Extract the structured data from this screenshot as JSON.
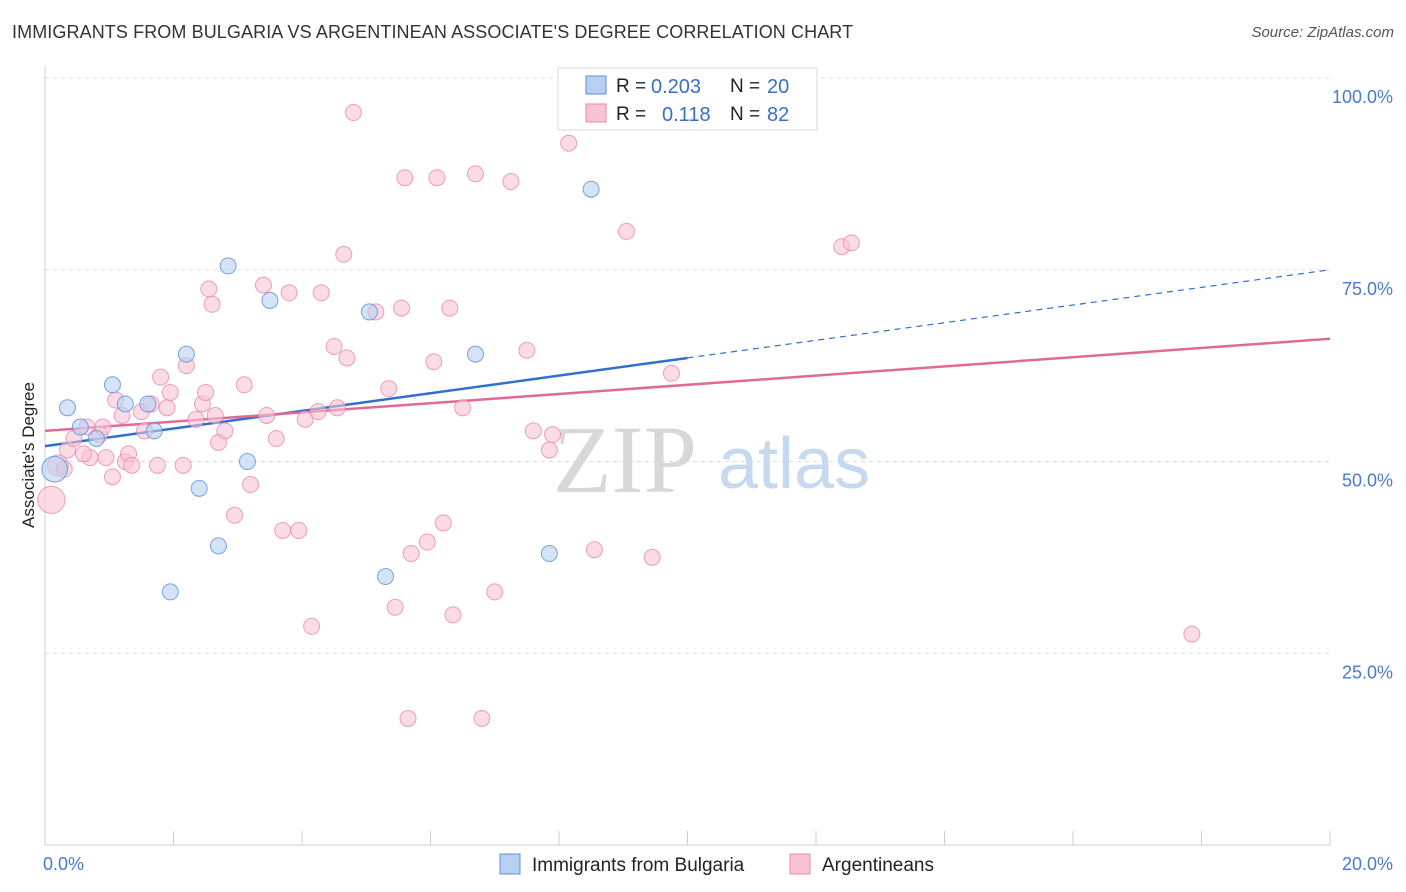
{
  "header": {
    "title": "IMMIGRANTS FROM BULGARIA VS ARGENTINEAN ASSOCIATE'S DEGREE CORRELATION CHART",
    "source": "Source: ZipAtlas.com"
  },
  "watermark": {
    "zip": "ZIP",
    "atlas": "atlas"
  },
  "legend": {
    "rows": [
      {
        "r_label": "R =",
        "r_value": "0.203",
        "n_label": "N =",
        "n_value": "20"
      },
      {
        "r_label": "R =",
        "r_value": "0.118",
        "n_label": "N =",
        "n_value": "82"
      }
    ]
  },
  "chart_data": {
    "type": "scatter",
    "title": "IMMIGRANTS FROM BULGARIA VS ARGENTINEAN ASSOCIATE'S DEGREE CORRELATION CHART",
    "xlabel": "",
    "ylabel": "Associate's Degree",
    "xlim": [
      0,
      20
    ],
    "ylim": [
      0,
      100
    ],
    "x_tick_labels": [
      "0.0%",
      "20.0%"
    ],
    "y_ticks": [
      25,
      50,
      75,
      100
    ],
    "y_tick_labels": [
      "25.0%",
      "50.0%",
      "75.0%",
      "100.0%"
    ],
    "grid": true,
    "legend_position": "top-center",
    "colors": {
      "bulgaria_fill": "#b7d0f2",
      "bulgaria_stroke": "#5b8fd6",
      "bulgaria_line": "#2e6fcf",
      "argentina_fill": "#f8c3d3",
      "argentina_stroke": "#e889a8",
      "argentina_line": "#e06a96"
    },
    "series": [
      {
        "name": "Immigrants from Bulgaria",
        "points": [
          [
            0.15,
            49.0,
            1.6
          ],
          [
            0.35,
            57.0,
            1
          ],
          [
            0.55,
            54.5,
            1
          ],
          [
            0.8,
            53.0,
            1
          ],
          [
            1.05,
            60.0,
            1
          ],
          [
            1.25,
            57.5,
            1
          ],
          [
            1.6,
            57.5,
            1
          ],
          [
            1.7,
            54.0,
            1
          ],
          [
            2.2,
            64.0,
            1
          ],
          [
            2.4,
            46.5,
            1
          ],
          [
            2.7,
            39.0,
            1
          ],
          [
            2.85,
            75.5,
            1
          ],
          [
            1.95,
            33.0,
            1
          ],
          [
            3.15,
            50.0,
            1
          ],
          [
            3.5,
            71.0,
            1
          ],
          [
            5.05,
            69.5,
            1
          ],
          [
            5.3,
            35.0,
            1
          ],
          [
            6.7,
            64.0,
            1
          ],
          [
            7.85,
            38.0,
            1
          ],
          [
            8.5,
            85.5,
            1
          ]
        ],
        "trend": {
          "x": [
            0,
            10
          ],
          "y": [
            52.0,
            63.5
          ],
          "dashed_to": [
            20,
            75.0
          ]
        }
      },
      {
        "name": "Argentineans",
        "points": [
          [
            0.1,
            45.0,
            1.7
          ],
          [
            0.2,
            49.5,
            1.3
          ],
          [
            0.35,
            51.5,
            1
          ],
          [
            0.45,
            53.0,
            1
          ],
          [
            0.65,
            54.5,
            1
          ],
          [
            0.7,
            50.5,
            1
          ],
          [
            0.85,
            53.5,
            1
          ],
          [
            0.9,
            54.5,
            1
          ],
          [
            0.95,
            50.5,
            1
          ],
          [
            1.05,
            48.0,
            1
          ],
          [
            1.1,
            58.0,
            1
          ],
          [
            1.2,
            56.0,
            1
          ],
          [
            1.25,
            50.0,
            1
          ],
          [
            1.3,
            51.0,
            1
          ],
          [
            1.35,
            49.5,
            1
          ],
          [
            1.5,
            56.5,
            1
          ],
          [
            1.55,
            54.0,
            1
          ],
          [
            1.65,
            57.5,
            1
          ],
          [
            1.75,
            49.5,
            1
          ],
          [
            1.8,
            61.0,
            1
          ],
          [
            1.9,
            57.0,
            1
          ],
          [
            1.95,
            59.0,
            1
          ],
          [
            2.15,
            49.5,
            1
          ],
          [
            2.2,
            62.5,
            1
          ],
          [
            2.35,
            55.5,
            1
          ],
          [
            2.45,
            57.5,
            1
          ],
          [
            2.5,
            59.0,
            1
          ],
          [
            2.55,
            72.5,
            1
          ],
          [
            2.6,
            70.5,
            1
          ],
          [
            2.65,
            56.0,
            1
          ],
          [
            2.7,
            52.5,
            1
          ],
          [
            2.8,
            54.0,
            1
          ],
          [
            2.95,
            43.0,
            1
          ],
          [
            3.1,
            60.0,
            1
          ],
          [
            3.2,
            47.0,
            1
          ],
          [
            3.4,
            73.0,
            1
          ],
          [
            3.45,
            56.0,
            1
          ],
          [
            3.6,
            53.0,
            1
          ],
          [
            3.7,
            41.0,
            1
          ],
          [
            3.8,
            72.0,
            1
          ],
          [
            3.95,
            41.0,
            1
          ],
          [
            4.05,
            55.5,
            1
          ],
          [
            4.15,
            28.5,
            1
          ],
          [
            4.25,
            56.5,
            1
          ],
          [
            4.3,
            72.0,
            1
          ],
          [
            4.5,
            65.0,
            1
          ],
          [
            4.55,
            57.0,
            1
          ],
          [
            4.65,
            77.0,
            1
          ],
          [
            4.7,
            63.5,
            1
          ],
          [
            4.8,
            95.5,
            1
          ],
          [
            5.15,
            69.5,
            1
          ],
          [
            5.35,
            59.5,
            1
          ],
          [
            5.45,
            31.0,
            1
          ],
          [
            5.55,
            70.0,
            1
          ],
          [
            5.6,
            87.0,
            1
          ],
          [
            5.65,
            16.5,
            1
          ],
          [
            5.7,
            38.0,
            1
          ],
          [
            5.95,
            39.5,
            1
          ],
          [
            6.05,
            63.0,
            1
          ],
          [
            6.1,
            87.0,
            1
          ],
          [
            6.2,
            42.0,
            1
          ],
          [
            6.3,
            70.0,
            1
          ],
          [
            6.35,
            30.0,
            1
          ],
          [
            6.5,
            57.0,
            1
          ],
          [
            6.7,
            87.5,
            1
          ],
          [
            6.8,
            16.5,
            1
          ],
          [
            7.0,
            33.0,
            1
          ],
          [
            7.25,
            86.5,
            1
          ],
          [
            7.5,
            64.5,
            1
          ],
          [
            7.6,
            54.0,
            1
          ],
          [
            7.85,
            51.5,
            1
          ],
          [
            7.9,
            53.5,
            1
          ],
          [
            8.15,
            91.5,
            1
          ],
          [
            8.55,
            38.5,
            1
          ],
          [
            9.05,
            80.0,
            1
          ],
          [
            9.45,
            37.5,
            1
          ],
          [
            9.75,
            61.5,
            1
          ],
          [
            12.4,
            78.0,
            1
          ],
          [
            12.55,
            78.5,
            1
          ],
          [
            17.85,
            27.5,
            1
          ],
          [
            0.3,
            49.0,
            1
          ],
          [
            0.6,
            51.0,
            1
          ]
        ],
        "trend": {
          "x": [
            0,
            20
          ],
          "y": [
            54.0,
            66.0
          ]
        }
      }
    ]
  }
}
